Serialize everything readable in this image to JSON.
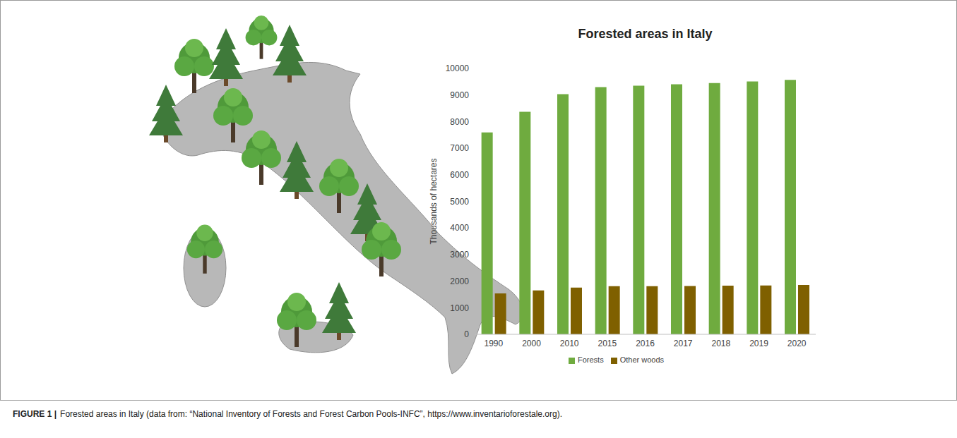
{
  "chart_data": {
    "type": "bar",
    "title": "Forested areas in Italy",
    "y_label": "Thousands of hectares",
    "categories": [
      "1990",
      "2000",
      "2010",
      "2015",
      "2016",
      "2017",
      "2018",
      "2019",
      "2020"
    ],
    "series": [
      {
        "name": "Forests",
        "color": "#6fab3f",
        "values": [
          7590,
          8370,
          9030,
          9300,
          9350,
          9400,
          9450,
          9510,
          9570
        ]
      },
      {
        "name": "Other woods",
        "color": "#7f6000",
        "values": [
          1540,
          1650,
          1760,
          1810,
          1810,
          1820,
          1830,
          1840,
          1860
        ]
      }
    ],
    "ylim": [
      0,
      10000
    ],
    "yticks": [
      0,
      1000,
      2000,
      3000,
      4000,
      5000,
      6000,
      7000,
      8000,
      9000,
      10000
    ],
    "grid": false,
    "legend": "bottom"
  },
  "figure": {
    "label": "FIGURE 1 |",
    "caption": "Forested areas in Italy (data from: “National Inventory of Forests and Forest Carbon Pools-INFC”, https://www.inventarioforestale.org)."
  }
}
